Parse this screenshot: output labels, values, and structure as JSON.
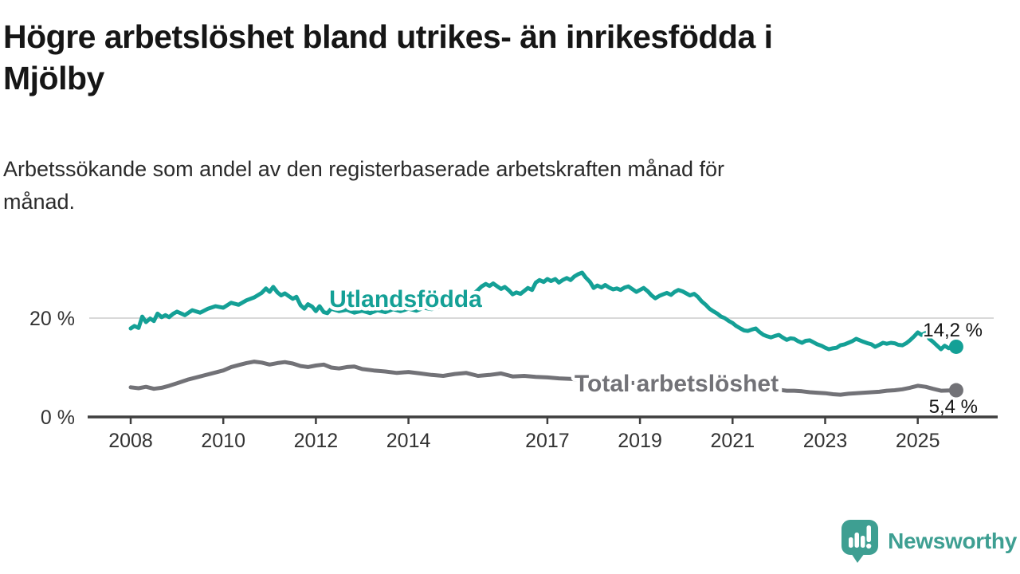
{
  "header": {
    "title_line1": "Högre arbetslöshet bland utrikes- än inrikesfödda i",
    "title_line2": "Mjölby",
    "subtitle_line1": "Arbetssökande som andel av den registerbaserade arbetskraften månad för",
    "subtitle_line2": "månad."
  },
  "footer": {
    "brand": "Newsworthy",
    "brand_color": "#3e9f92"
  },
  "colors": {
    "title_text": "#161616",
    "subtitle_text": "#2b2b2b",
    "axis_line": "#3f3f3f",
    "gridline": "#d9d9d9",
    "tick_text": "#333333",
    "value_label_text": "#141414",
    "series_foreign_born": "#14a096",
    "series_total": "#727277",
    "brand_teal": "#3e9f92"
  },
  "chart_data": {
    "type": "line",
    "title": "Högre arbetslöshet bland utrikes- än inrikesfödda i Mjölby",
    "subtitle": "Arbetssökande som andel av den registerbaserade arbetskraften månad för månad.",
    "xlabel": "",
    "ylabel": "",
    "unit": "%",
    "grid": "single horizontal gridline at 20 %",
    "legend_position": "inline labels on lines",
    "xlim": [
      2007.85,
      2026.2
    ],
    "ylim": [
      0,
      31
    ],
    "x_ticks": [
      2008,
      2010,
      2012,
      2014,
      2017,
      2019,
      2021,
      2023,
      2025
    ],
    "y_ticks": [
      {
        "value": 20,
        "label": "20 %",
        "gridline": true
      },
      {
        "value": 0,
        "label": "0 %",
        "gridline": false
      }
    ],
    "series": [
      {
        "name": "Utlandsfödda",
        "color": "#14a096",
        "end_label": "14,2 %",
        "last_value": 14.2,
        "points": [
          [
            2008.0,
            17.9
          ],
          [
            2008.08,
            18.4
          ],
          [
            2008.17,
            18.0
          ],
          [
            2008.25,
            20.3
          ],
          [
            2008.33,
            19.2
          ],
          [
            2008.42,
            19.9
          ],
          [
            2008.5,
            19.4
          ],
          [
            2008.58,
            20.9
          ],
          [
            2008.67,
            20.2
          ],
          [
            2008.75,
            20.6
          ],
          [
            2008.83,
            20.2
          ],
          [
            2008.92,
            20.9
          ],
          [
            2009.0,
            21.3
          ],
          [
            2009.17,
            20.6
          ],
          [
            2009.33,
            21.6
          ],
          [
            2009.5,
            21.1
          ],
          [
            2009.67,
            21.9
          ],
          [
            2009.83,
            22.4
          ],
          [
            2010.0,
            22.1
          ],
          [
            2010.17,
            23.1
          ],
          [
            2010.33,
            22.7
          ],
          [
            2010.5,
            23.6
          ],
          [
            2010.67,
            24.2
          ],
          [
            2010.83,
            25.1
          ],
          [
            2010.92,
            26.0
          ],
          [
            2011.0,
            25.3
          ],
          [
            2011.08,
            26.3
          ],
          [
            2011.17,
            25.2
          ],
          [
            2011.25,
            24.6
          ],
          [
            2011.33,
            25.0
          ],
          [
            2011.42,
            24.4
          ],
          [
            2011.5,
            23.9
          ],
          [
            2011.58,
            24.3
          ],
          [
            2011.67,
            22.6
          ],
          [
            2011.75,
            21.9
          ],
          [
            2011.83,
            22.8
          ],
          [
            2011.92,
            22.3
          ],
          [
            2012.0,
            21.4
          ],
          [
            2012.08,
            22.4
          ],
          [
            2012.17,
            21.2
          ],
          [
            2012.25,
            21.0
          ],
          [
            2012.33,
            21.9
          ],
          [
            2012.5,
            21.4
          ],
          [
            2012.67,
            21.7
          ],
          [
            2012.83,
            21.1
          ],
          [
            2013.0,
            21.5
          ],
          [
            2013.17,
            21.0
          ],
          [
            2013.33,
            21.6
          ],
          [
            2013.5,
            21.2
          ],
          [
            2013.67,
            21.8
          ],
          [
            2013.83,
            21.4
          ],
          [
            2014.0,
            21.9
          ],
          [
            2014.17,
            21.5
          ],
          [
            2014.33,
            22.1
          ],
          [
            2014.5,
            21.8
          ],
          [
            2014.67,
            22.4
          ],
          [
            2014.83,
            22.2
          ],
          [
            2015.0,
            22.8
          ],
          [
            2015.17,
            23.5
          ],
          [
            2015.33,
            24.3
          ],
          [
            2015.5,
            25.7
          ],
          [
            2015.58,
            26.4
          ],
          [
            2015.67,
            26.9
          ],
          [
            2015.75,
            26.5
          ],
          [
            2015.83,
            27.0
          ],
          [
            2015.92,
            26.4
          ],
          [
            2016.0,
            25.9
          ],
          [
            2016.08,
            26.3
          ],
          [
            2016.17,
            25.6
          ],
          [
            2016.25,
            24.8
          ],
          [
            2016.33,
            25.2
          ],
          [
            2016.42,
            24.9
          ],
          [
            2016.5,
            25.5
          ],
          [
            2016.58,
            26.1
          ],
          [
            2016.67,
            25.7
          ],
          [
            2016.75,
            27.2
          ],
          [
            2016.83,
            27.7
          ],
          [
            2016.92,
            27.3
          ],
          [
            2017.0,
            27.9
          ],
          [
            2017.08,
            27.5
          ],
          [
            2017.17,
            27.9
          ],
          [
            2017.25,
            27.2
          ],
          [
            2017.33,
            27.7
          ],
          [
            2017.42,
            28.1
          ],
          [
            2017.5,
            27.7
          ],
          [
            2017.58,
            28.4
          ],
          [
            2017.67,
            28.9
          ],
          [
            2017.75,
            29.2
          ],
          [
            2017.83,
            28.2
          ],
          [
            2017.92,
            27.3
          ],
          [
            2018.0,
            26.1
          ],
          [
            2018.08,
            26.6
          ],
          [
            2018.17,
            26.2
          ],
          [
            2018.25,
            26.7
          ],
          [
            2018.33,
            26.2
          ],
          [
            2018.42,
            25.8
          ],
          [
            2018.5,
            26.0
          ],
          [
            2018.58,
            25.7
          ],
          [
            2018.67,
            26.2
          ],
          [
            2018.75,
            26.4
          ],
          [
            2018.83,
            25.9
          ],
          [
            2018.92,
            25.3
          ],
          [
            2019.0,
            25.7
          ],
          [
            2019.08,
            26.1
          ],
          [
            2019.17,
            25.4
          ],
          [
            2019.25,
            24.6
          ],
          [
            2019.33,
            24.0
          ],
          [
            2019.42,
            24.5
          ],
          [
            2019.5,
            24.8
          ],
          [
            2019.58,
            25.1
          ],
          [
            2019.67,
            24.7
          ],
          [
            2019.75,
            25.3
          ],
          [
            2019.83,
            25.7
          ],
          [
            2019.92,
            25.4
          ],
          [
            2020.0,
            25.0
          ],
          [
            2020.08,
            24.6
          ],
          [
            2020.17,
            24.9
          ],
          [
            2020.25,
            24.3
          ],
          [
            2020.33,
            23.4
          ],
          [
            2020.42,
            22.7
          ],
          [
            2020.5,
            21.9
          ],
          [
            2020.58,
            21.4
          ],
          [
            2020.67,
            20.9
          ],
          [
            2020.75,
            20.3
          ],
          [
            2020.83,
            20.0
          ],
          [
            2020.92,
            19.4
          ],
          [
            2021.0,
            19.0
          ],
          [
            2021.08,
            18.4
          ],
          [
            2021.17,
            17.9
          ],
          [
            2021.25,
            17.5
          ],
          [
            2021.33,
            17.4
          ],
          [
            2021.42,
            17.7
          ],
          [
            2021.5,
            17.9
          ],
          [
            2021.58,
            17.2
          ],
          [
            2021.67,
            16.6
          ],
          [
            2021.75,
            16.3
          ],
          [
            2021.83,
            16.1
          ],
          [
            2021.92,
            16.4
          ],
          [
            2022.0,
            16.6
          ],
          [
            2022.08,
            16.1
          ],
          [
            2022.17,
            15.6
          ],
          [
            2022.25,
            15.9
          ],
          [
            2022.33,
            15.8
          ],
          [
            2022.42,
            15.3
          ],
          [
            2022.5,
            15.0
          ],
          [
            2022.58,
            15.4
          ],
          [
            2022.67,
            15.5
          ],
          [
            2022.75,
            15.1
          ],
          [
            2022.83,
            14.7
          ],
          [
            2022.92,
            14.4
          ],
          [
            2023.0,
            14.0
          ],
          [
            2023.08,
            13.7
          ],
          [
            2023.17,
            13.9
          ],
          [
            2023.25,
            14.0
          ],
          [
            2023.33,
            14.5
          ],
          [
            2023.42,
            14.7
          ],
          [
            2023.5,
            15.0
          ],
          [
            2023.58,
            15.3
          ],
          [
            2023.67,
            15.8
          ],
          [
            2023.75,
            15.5
          ],
          [
            2023.83,
            15.2
          ],
          [
            2023.92,
            14.9
          ],
          [
            2024.0,
            14.7
          ],
          [
            2024.08,
            14.2
          ],
          [
            2024.17,
            14.6
          ],
          [
            2024.25,
            15.0
          ],
          [
            2024.33,
            14.8
          ],
          [
            2024.42,
            15.0
          ],
          [
            2024.5,
            14.9
          ],
          [
            2024.58,
            14.6
          ],
          [
            2024.67,
            14.5
          ],
          [
            2024.75,
            14.9
          ],
          [
            2024.83,
            15.5
          ],
          [
            2024.92,
            16.3
          ],
          [
            2025.0,
            17.1
          ],
          [
            2025.08,
            16.6
          ],
          [
            2025.17,
            17.0
          ],
          [
            2025.25,
            15.8
          ],
          [
            2025.33,
            15.2
          ],
          [
            2025.42,
            14.4
          ],
          [
            2025.5,
            13.7
          ],
          [
            2025.58,
            14.4
          ],
          [
            2025.67,
            13.9
          ],
          [
            2025.83,
            14.2
          ]
        ]
      },
      {
        "name": "Total arbetslöshet",
        "color": "#727277",
        "end_label": "5,4 %",
        "last_value": 5.4,
        "points": [
          [
            2008.0,
            6.0
          ],
          [
            2008.17,
            5.8
          ],
          [
            2008.33,
            6.1
          ],
          [
            2008.5,
            5.7
          ],
          [
            2008.67,
            5.9
          ],
          [
            2008.83,
            6.3
          ],
          [
            2009.0,
            6.8
          ],
          [
            2009.25,
            7.6
          ],
          [
            2009.5,
            8.2
          ],
          [
            2009.75,
            8.8
          ],
          [
            2010.0,
            9.4
          ],
          [
            2010.17,
            10.1
          ],
          [
            2010.33,
            10.5
          ],
          [
            2010.5,
            10.9
          ],
          [
            2010.67,
            11.2
          ],
          [
            2010.83,
            11.0
          ],
          [
            2011.0,
            10.6
          ],
          [
            2011.17,
            10.9
          ],
          [
            2011.33,
            11.1
          ],
          [
            2011.5,
            10.8
          ],
          [
            2011.67,
            10.3
          ],
          [
            2011.83,
            10.1
          ],
          [
            2012.0,
            10.4
          ],
          [
            2012.17,
            10.6
          ],
          [
            2012.33,
            10.0
          ],
          [
            2012.5,
            9.8
          ],
          [
            2012.67,
            10.1
          ],
          [
            2012.83,
            10.2
          ],
          [
            2013.0,
            9.7
          ],
          [
            2013.25,
            9.4
          ],
          [
            2013.5,
            9.2
          ],
          [
            2013.75,
            8.9
          ],
          [
            2014.0,
            9.1
          ],
          [
            2014.25,
            8.8
          ],
          [
            2014.5,
            8.5
          ],
          [
            2014.75,
            8.3
          ],
          [
            2015.0,
            8.7
          ],
          [
            2015.25,
            8.9
          ],
          [
            2015.5,
            8.3
          ],
          [
            2015.75,
            8.5
          ],
          [
            2016.0,
            8.8
          ],
          [
            2016.25,
            8.2
          ],
          [
            2016.5,
            8.3
          ],
          [
            2016.75,
            8.1
          ],
          [
            2017.0,
            8.0
          ],
          [
            2017.25,
            7.8
          ],
          [
            2017.5,
            7.7
          ],
          [
            2017.75,
            7.5
          ],
          [
            2018.0,
            7.3
          ],
          [
            2018.5,
            7.0
          ],
          [
            2019.0,
            6.8
          ],
          [
            2019.5,
            6.6
          ],
          [
            2020.0,
            6.9
          ],
          [
            2020.5,
            7.1
          ],
          [
            2021.0,
            6.5
          ],
          [
            2021.5,
            6.0
          ],
          [
            2021.92,
            5.6
          ],
          [
            2022.17,
            5.3
          ],
          [
            2022.33,
            5.3
          ],
          [
            2022.5,
            5.2
          ],
          [
            2022.67,
            5.0
          ],
          [
            2022.83,
            4.9
          ],
          [
            2023.0,
            4.8
          ],
          [
            2023.17,
            4.6
          ],
          [
            2023.33,
            4.5
          ],
          [
            2023.5,
            4.7
          ],
          [
            2023.67,
            4.8
          ],
          [
            2023.83,
            4.9
          ],
          [
            2024.0,
            5.0
          ],
          [
            2024.17,
            5.1
          ],
          [
            2024.33,
            5.3
          ],
          [
            2024.5,
            5.4
          ],
          [
            2024.67,
            5.6
          ],
          [
            2024.83,
            5.9
          ],
          [
            2025.0,
            6.3
          ],
          [
            2025.17,
            6.1
          ],
          [
            2025.33,
            5.7
          ],
          [
            2025.5,
            5.3
          ],
          [
            2025.83,
            5.4
          ]
        ]
      }
    ]
  }
}
